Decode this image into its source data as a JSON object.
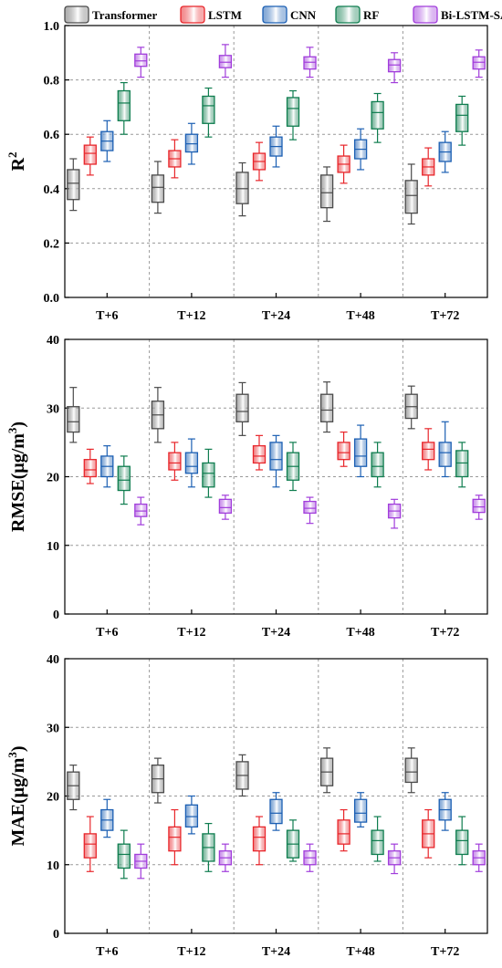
{
  "legend": {
    "items": [
      {
        "name": "Transformer",
        "stroke": "#4a4a4a",
        "fill_dark": "#6d6d6d"
      },
      {
        "name": "LSTM",
        "stroke": "#e8262b",
        "fill_dark": "#e8262b"
      },
      {
        "name": "CNN",
        "stroke": "#1b5fb3",
        "fill_dark": "#1b5fb3"
      },
      {
        "name": "RF",
        "stroke": "#0f7d4f",
        "fill_dark": "#0f7d4f"
      },
      {
        "name": "Bi-LSTM-SA",
        "stroke": "#a13ddb",
        "fill_dark": "#a13ddb"
      }
    ]
  },
  "chart_data": [
    {
      "type": "box",
      "ylabel_main": "R",
      "ylabel_sup": "2",
      "ylabel_tail": "",
      "ylim": [
        0.0,
        1.0
      ],
      "yticks": [
        "0.0",
        "0.2",
        "0.4",
        "0.6",
        "0.8",
        "1.0"
      ],
      "ytick_values": [
        0.0,
        0.2,
        0.4,
        0.6,
        0.8,
        1.0
      ],
      "grid": true,
      "categories": [
        "T+6",
        "T+12",
        "T+24",
        "T+48",
        "T+72"
      ],
      "series": [
        {
          "name": "Transformer",
          "boxes": [
            [
              0.32,
              0.36,
              0.42,
              0.47,
              0.51
            ],
            [
              0.31,
              0.35,
              0.405,
              0.45,
              0.5
            ],
            [
              0.3,
              0.345,
              0.4,
              0.46,
              0.495
            ],
            [
              0.28,
              0.33,
              0.385,
              0.45,
              0.48
            ],
            [
              0.27,
              0.31,
              0.375,
              0.43,
              0.49
            ]
          ]
        },
        {
          "name": "LSTM",
          "boxes": [
            [
              0.45,
              0.49,
              0.53,
              0.56,
              0.59
            ],
            [
              0.44,
              0.48,
              0.51,
              0.54,
              0.58
            ],
            [
              0.43,
              0.47,
              0.5,
              0.53,
              0.57
            ],
            [
              0.42,
              0.46,
              0.49,
              0.52,
              0.56
            ],
            [
              0.41,
              0.45,
              0.48,
              0.51,
              0.55
            ]
          ]
        },
        {
          "name": "CNN",
          "boxes": [
            [
              0.5,
              0.54,
              0.575,
              0.61,
              0.65
            ],
            [
              0.49,
              0.535,
              0.565,
              0.6,
              0.64
            ],
            [
              0.48,
              0.52,
              0.555,
              0.59,
              0.63
            ],
            [
              0.47,
              0.51,
              0.545,
              0.58,
              0.62
            ],
            [
              0.46,
              0.5,
              0.535,
              0.57,
              0.61
            ]
          ]
        },
        {
          "name": "RF",
          "boxes": [
            [
              0.6,
              0.65,
              0.715,
              0.76,
              0.79
            ],
            [
              0.59,
              0.64,
              0.705,
              0.74,
              0.77
            ],
            [
              0.58,
              0.63,
              0.695,
              0.735,
              0.76
            ],
            [
              0.57,
              0.62,
              0.68,
              0.72,
              0.75
            ],
            [
              0.56,
              0.61,
              0.67,
              0.71,
              0.74
            ]
          ]
        },
        {
          "name": "Bi-LSTM-SA",
          "boxes": [
            [
              0.81,
              0.85,
              0.87,
              0.895,
              0.92
            ],
            [
              0.81,
              0.845,
              0.865,
              0.89,
              0.93
            ],
            [
              0.81,
              0.84,
              0.865,
              0.885,
              0.92
            ],
            [
              0.79,
              0.83,
              0.855,
              0.875,
              0.9
            ],
            [
              0.81,
              0.84,
              0.865,
              0.885,
              0.91
            ]
          ]
        }
      ]
    },
    {
      "type": "box",
      "ylabel_main": "RMSE(μg/m",
      "ylabel_sup": "3",
      "ylabel_tail": ")",
      "ylim": [
        0,
        40
      ],
      "yticks": [
        "0",
        "10",
        "20",
        "30",
        "40"
      ],
      "ytick_values": [
        0,
        10,
        20,
        30,
        40
      ],
      "grid": true,
      "categories": [
        "T+6",
        "T+12",
        "T+24",
        "T+48",
        "T+72"
      ],
      "series": [
        {
          "name": "Transformer",
          "boxes": [
            [
              25,
              26.5,
              28,
              30.2,
              33
            ],
            [
              25,
              27,
              29,
              31,
              33
            ],
            [
              26,
              28,
              29.5,
              32,
              33.7
            ],
            [
              26.5,
              28,
              29.7,
              32,
              33.8
            ],
            [
              27,
              28.5,
              30.2,
              32,
              33.2
            ]
          ]
        },
        {
          "name": "LSTM",
          "boxes": [
            [
              19,
              20,
              21,
              22.5,
              24
            ],
            [
              19.5,
              21,
              22,
              23.5,
              25
            ],
            [
              21,
              22,
              23,
              24.5,
              26
            ],
            [
              21.5,
              22.5,
              23.5,
              25,
              26.5
            ],
            [
              21,
              22.5,
              24,
              25,
              27
            ]
          ]
        },
        {
          "name": "CNN",
          "boxes": [
            [
              18.5,
              20,
              21.5,
              23,
              24.5
            ],
            [
              18.5,
              20.5,
              21.5,
              23.5,
              25.5
            ],
            [
              18.5,
              21,
              22.5,
              25,
              26
            ],
            [
              20,
              21.5,
              23,
              25.5,
              27.5
            ],
            [
              20,
              21.5,
              23.5,
              25,
              28
            ]
          ]
        },
        {
          "name": "RF",
          "boxes": [
            [
              16,
              18,
              19.5,
              21.5,
              23
            ],
            [
              17,
              18.5,
              20.5,
              22,
              24
            ],
            [
              18,
              19.5,
              21.5,
              23.5,
              25
            ],
            [
              18.5,
              20,
              21.5,
              23.5,
              25
            ],
            [
              18.5,
              20,
              22,
              23.8,
              25
            ]
          ]
        },
        {
          "name": "Bi-LSTM-SA",
          "boxes": [
            [
              13,
              14.2,
              15,
              16,
              17
            ],
            [
              13.8,
              14.7,
              15.5,
              16.7,
              17.3
            ],
            [
              13.2,
              14.7,
              15.4,
              16.4,
              17
            ],
            [
              12.5,
              14,
              15,
              16,
              16.7
            ],
            [
              13.8,
              14.8,
              15.6,
              16.7,
              17.3
            ]
          ]
        }
      ]
    },
    {
      "type": "box",
      "ylabel_main": "MAE(μg/m",
      "ylabel_sup": "3",
      "ylabel_tail": ")",
      "ylim": [
        0,
        40
      ],
      "yticks": [
        "0",
        "10",
        "20",
        "30",
        "40"
      ],
      "ytick_values": [
        0,
        10,
        20,
        30,
        40
      ],
      "grid": true,
      "categories": [
        "T+6",
        "T+12",
        "T+24",
        "T+48",
        "T+72"
      ],
      "series": [
        {
          "name": "Transformer",
          "boxes": [
            [
              18,
              19.5,
              21.5,
              23.5,
              24.5
            ],
            [
              19,
              20.5,
              22.5,
              24.5,
              25.5
            ],
            [
              20,
              21,
              23,
              25,
              26
            ],
            [
              20.5,
              21.5,
              23.5,
              25.5,
              27
            ],
            [
              20.5,
              22,
              23.5,
              25.5,
              27
            ]
          ]
        },
        {
          "name": "LSTM",
          "boxes": [
            [
              9,
              11,
              13,
              14.5,
              17
            ],
            [
              10,
              12,
              14,
              15.5,
              18
            ],
            [
              10,
              12,
              14,
              15.5,
              17
            ],
            [
              12,
              13,
              14.5,
              16.5,
              18
            ],
            [
              11,
              12.5,
              14.5,
              16.5,
              18
            ]
          ]
        },
        {
          "name": "CNN",
          "boxes": [
            [
              14,
              15,
              16.5,
              18,
              19.5
            ],
            [
              14.5,
              15.5,
              17,
              18.7,
              20
            ],
            [
              15,
              16,
              17.5,
              19.5,
              20.5
            ],
            [
              15.5,
              16.2,
              17.5,
              19.5,
              20.5
            ],
            [
              15,
              16.5,
              18,
              19.5,
              20.5
            ]
          ]
        },
        {
          "name": "RF",
          "boxes": [
            [
              8,
              9.5,
              11.5,
              13,
              15
            ],
            [
              9,
              10.5,
              12.5,
              14.5,
              16
            ],
            [
              10.5,
              11,
              13,
              15,
              16.5
            ],
            [
              10.5,
              11.5,
              13.5,
              15,
              17
            ],
            [
              10,
              11.5,
              13.5,
              15,
              17
            ]
          ]
        },
        {
          "name": "Bi-LSTM-SA",
          "boxes": [
            [
              8,
              9.5,
              10.5,
              11.5,
              13
            ],
            [
              9,
              10,
              11,
              12,
              13
            ],
            [
              9,
              10,
              11,
              12,
              13
            ],
            [
              8.7,
              10,
              11,
              12,
              13
            ],
            [
              9,
              10,
              11,
              12,
              13
            ]
          ]
        }
      ]
    }
  ]
}
